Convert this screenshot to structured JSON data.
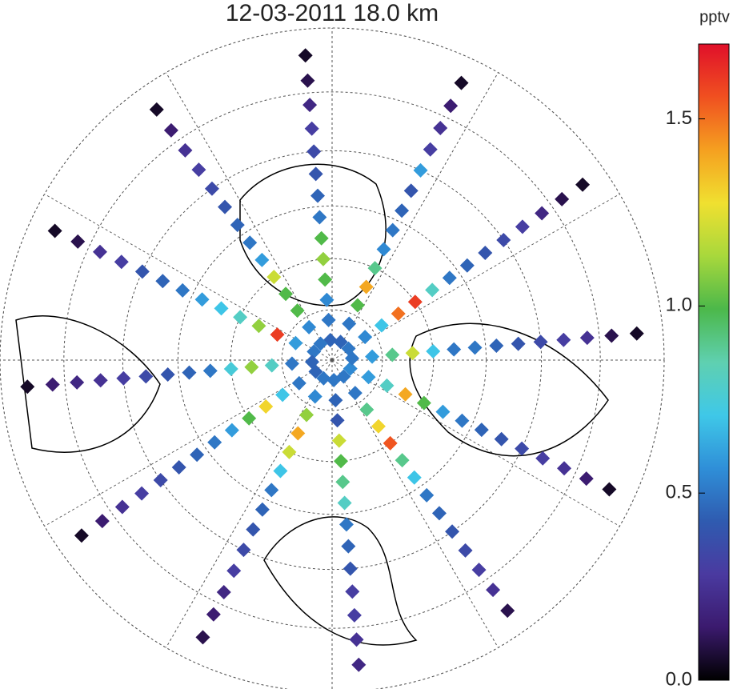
{
  "chart_data": {
    "type": "polar_scatter",
    "title": "12-03-2011  18.0 km",
    "colorbar_label": "pptv",
    "colormap": [
      "#000000",
      "#3b1a6e",
      "#4a3aa0",
      "#2f5bb0",
      "#2f8fd8",
      "#3fc8e8",
      "#5fd0b0",
      "#4cb84a",
      "#a8d83c",
      "#f0e030",
      "#f5a020",
      "#f05020",
      "#e0102a"
    ],
    "ylim": [
      0,
      1.7
    ],
    "yticks": [
      {
        "value": 0,
        "label": "0.0"
      },
      0.5,
      {
        "value": 1,
        "label": "1.0"
      },
      1.5
    ],
    "lat_circles": [
      80,
      70,
      60,
      50,
      40,
      30
    ],
    "meridians": [
      0,
      30,
      60,
      90,
      120,
      150,
      180,
      210,
      240,
      270,
      300,
      330
    ],
    "lats": [
      86,
      82,
      78,
      74,
      70,
      66,
      62,
      58,
      54,
      50,
      46,
      42,
      38,
      34
    ],
    "tracks": [
      {
        "lon": 5,
        "values": [
          0.5,
          0.45,
          0.4,
          1.2,
          1.0,
          0.9,
          0.8,
          0.5,
          0.45,
          0.4,
          0.3,
          0.3,
          0.25,
          0.2
        ]
      },
      {
        "lon": 35,
        "values": [
          0.5,
          0.5,
          0.9,
          1.3,
          1.55,
          0.9,
          0.7,
          0.5,
          0.45,
          0.4,
          0.35,
          0.3,
          0.25,
          0.1
        ]
      },
      {
        "lon": 65,
        "values": [
          0.55,
          0.6,
          0.8,
          1.4,
          1.0,
          0.6,
          0.5,
          0.45,
          0.4,
          0.35,
          0.3,
          0.25,
          0.15,
          0.05
        ]
      },
      {
        "lon": 95,
        "values": [
          0.5,
          0.6,
          0.9,
          1.2,
          0.7,
          0.5,
          0.5,
          0.45,
          0.4,
          0.35,
          0.3,
          0.25,
          0.1,
          0.05
        ]
      },
      {
        "lon": 125,
        "values": [
          0.5,
          0.55,
          0.7,
          1.5,
          1.6,
          0.8,
          0.5,
          0.45,
          0.4,
          0.35,
          0.3,
          0.2,
          0.1,
          0.05
        ]
      },
      {
        "lon": 155,
        "values": [
          0.45,
          0.5,
          1.0,
          1.4,
          0.9,
          0.55,
          0.5,
          0.45,
          0.4,
          0.6,
          0.3,
          0.25,
          0.15,
          0.05
        ]
      },
      {
        "lon": 185,
        "values": [
          0.45,
          0.5,
          0.55,
          1.0,
          1.1,
          1.0,
          0.5,
          0.45,
          0.4,
          0.35,
          0.3,
          0.2,
          0.1,
          0.05
        ]
      },
      {
        "lon": 215,
        "values": [
          0.5,
          0.55,
          1.0,
          1.0,
          1.2,
          0.6,
          0.5,
          0.45,
          0.4,
          0.35,
          0.3,
          0.25,
          0.15,
          0.05
        ]
      },
      {
        "lon": 245,
        "values": [
          0.5,
          0.6,
          1.6,
          1.1,
          0.8,
          0.7,
          0.6,
          0.5,
          0.45,
          0.4,
          0.3,
          0.25,
          0.1,
          0.05
        ]
      },
      {
        "lon": 275,
        "values": [
          0.45,
          0.5,
          0.8,
          1.1,
          0.75,
          0.5,
          0.45,
          0.4,
          0.35,
          0.3,
          0.25,
          0.2,
          0.15,
          0.05
        ]
      },
      {
        "lon": 305,
        "values": [
          0.45,
          0.5,
          0.7,
          1.3,
          1.0,
          0.6,
          0.5,
          0.45,
          0.4,
          0.35,
          0.3,
          0.25,
          0.15,
          0.05
        ]
      },
      {
        "lon": 335,
        "values": [
          0.5,
          0.55,
          1.1,
          1.4,
          1.2,
          0.7,
          0.5,
          0.45,
          0.4,
          0.35,
          0.3,
          0.2,
          0.15,
          0.1
        ]
      }
    ]
  }
}
